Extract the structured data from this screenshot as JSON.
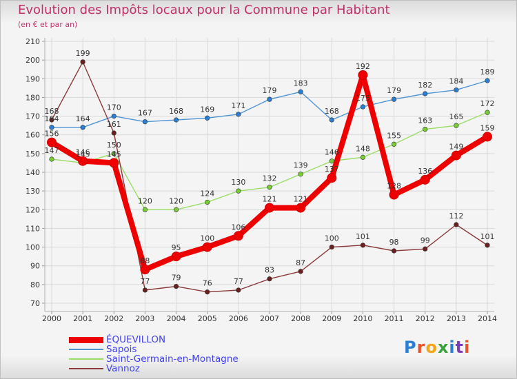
{
  "title": "Evolution des Impôts locaux pour la Commune par Habitant",
  "subtitle": "(en € et par an)",
  "logo": {
    "text": "Proxiti",
    "colors": [
      "#2a7ed3",
      "#e8532b",
      "#f2a618",
      "#3aa23a",
      "#2a7ed3",
      "#7a3db8",
      "#e8532b"
    ]
  },
  "chart_data": {
    "type": "line",
    "title": "Evolution des Impôts locaux pour la Commune par Habitant",
    "subtitle": "(en € et par an)",
    "categories": [
      "2000",
      "2001",
      "2002",
      "2003",
      "2004",
      "2005",
      "2006",
      "2007",
      "2008",
      "2009",
      "2010",
      "2011",
      "2012",
      "2013",
      "2014"
    ],
    "ylim": [
      70,
      210
    ],
    "yticks": [
      "70",
      "80",
      "90",
      "100",
      "110",
      "120",
      "130",
      "140",
      "150",
      "160",
      "170",
      "180",
      "190",
      "200",
      "210"
    ],
    "grid": true,
    "series": [
      {
        "name": "ÉQUEVILLON",
        "color": "#ee0000",
        "marker": "#cc0000",
        "bold": true,
        "values": [
          156,
          146,
          145,
          88,
          95,
          100,
          106,
          121,
          121,
          137,
          192,
          128,
          136,
          149,
          159
        ],
        "labels": [
          "156",
          "146",
          "145",
          "88",
          "95",
          "100",
          "106",
          "121",
          "121",
          "137",
          "192",
          "128",
          "136",
          "149",
          "159"
        ]
      },
      {
        "name": "Sapois",
        "color": "#4d94d4",
        "marker": "#2a7ed3",
        "values": [
          164,
          164,
          170,
          167,
          168,
          169,
          171,
          179,
          183,
          168,
          175,
          179,
          182,
          184,
          189
        ],
        "labels": [
          "164",
          "164",
          "170",
          "167",
          "168",
          "169",
          "171",
          "179",
          "183",
          "168",
          "175",
          "179",
          "182",
          "184",
          "189"
        ]
      },
      {
        "name": "Saint-Germain-en-Montagne",
        "color": "#99dd66",
        "marker": "#77cc33",
        "values": [
          147,
          145,
          150,
          120,
          120,
          124,
          130,
          132,
          139,
          146,
          148,
          155,
          163,
          165,
          172
        ],
        "labels": [
          "147",
          "145",
          "150",
          "120",
          "120",
          "124",
          "130",
          "132",
          "139",
          "146",
          "148",
          "155",
          "163",
          "165",
          "172"
        ]
      },
      {
        "name": "Vannoz",
        "color": "#8b3a3a",
        "marker": "#6b1f1f",
        "values": [
          168,
          199,
          161,
          77,
          79,
          76,
          77,
          83,
          87,
          100,
          101,
          98,
          99,
          112,
          101
        ],
        "labels": [
          "168",
          "199",
          "161",
          "77",
          "79",
          "76",
          "77",
          "83",
          "87",
          "100",
          "101",
          "98",
          "99",
          "112",
          "101"
        ]
      }
    ],
    "legend_position": "bottom-left"
  }
}
